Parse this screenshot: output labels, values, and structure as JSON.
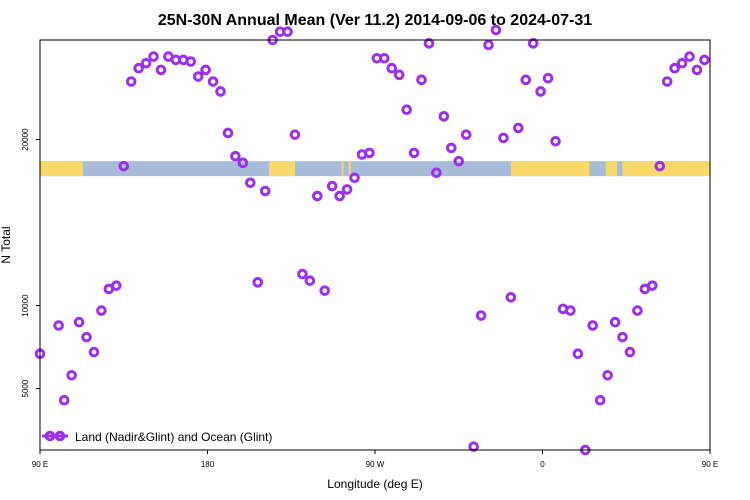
{
  "chart_data": {
    "type": "scatter",
    "title": "25N-30N Annual Mean (Ver 11.2)   2014-09-06 to 2024-07-31",
    "xlabel": "Longitude (deg E)",
    "ylabel": "N Total",
    "x_unit_note": "unwrapped longitude: starts at 90 E, runs east through 180 and back around to 180 E",
    "xlim": [
      90,
      450
    ],
    "ylim": [
      1300,
      26000
    ],
    "x_ticks": [
      {
        "value": 90,
        "label": "90 E"
      },
      {
        "value": 180,
        "label": "180"
      },
      {
        "value": 270,
        "label": "90 W"
      },
      {
        "value": 360,
        "label": "0"
      },
      {
        "value": 450,
        "label": "90 E"
      },
      {
        "value": 540,
        "label": "180"
      }
    ],
    "y_ticks": [
      {
        "value": 5000,
        "label": "5000"
      },
      {
        "value": 10000,
        "label": "10000"
      },
      {
        "value": 20000,
        "label": "20000"
      }
    ],
    "grid": false,
    "legend_position": "bottom-left",
    "colors": {
      "marker": "#9b30f0",
      "land": "#f8d96a",
      "ocean": "#a8bcd9"
    },
    "mask_strip_y_range": [
      17800,
      18700
    ],
    "land_segments": [
      [
        90,
        113
      ],
      [
        213,
        227
      ],
      [
        252,
        253
      ],
      [
        256,
        257
      ],
      [
        343,
        360
      ],
      [
        360,
        385
      ],
      [
        394,
        400
      ],
      [
        403,
        461
      ]
    ],
    "series": [
      {
        "name": "Land (Nadir&Glint) and Ocean (Glint)",
        "points": [
          [
            90,
            7100
          ],
          [
            100,
            8800
          ],
          [
            103,
            4300
          ],
          [
            107,
            5800
          ],
          [
            111,
            9000
          ],
          [
            115,
            8100
          ],
          [
            119,
            7200
          ],
          [
            123,
            9700
          ],
          [
            127,
            11000
          ],
          [
            131,
            11200
          ],
          [
            135,
            18400
          ],
          [
            139,
            23500
          ],
          [
            143,
            24300
          ],
          [
            147,
            24600
          ],
          [
            151,
            25000
          ],
          [
            155,
            24200
          ],
          [
            159,
            25000
          ],
          [
            163,
            24800
          ],
          [
            167,
            24800
          ],
          [
            171,
            24700
          ],
          [
            175,
            23800
          ],
          [
            179,
            24200
          ],
          [
            183,
            23500
          ],
          [
            187,
            22900
          ],
          [
            191,
            20400
          ],
          [
            195,
            19000
          ],
          [
            199,
            18600
          ],
          [
            203,
            17400
          ],
          [
            207,
            11400
          ],
          [
            211,
            16900
          ],
          [
            215,
            26000
          ],
          [
            219,
            26500
          ],
          [
            223,
            26500
          ],
          [
            227,
            20300
          ],
          [
            231,
            11900
          ],
          [
            235,
            11500
          ],
          [
            239,
            16600
          ],
          [
            243,
            10900
          ],
          [
            247,
            17200
          ],
          [
            251,
            16600
          ],
          [
            255,
            17000
          ],
          [
            259,
            17700
          ],
          [
            263,
            19100
          ],
          [
            267,
            19200
          ],
          [
            271,
            24900
          ],
          [
            275,
            24900
          ],
          [
            279,
            24300
          ],
          [
            283,
            23900
          ],
          [
            287,
            21800
          ],
          [
            291,
            19200
          ],
          [
            295,
            23600
          ],
          [
            299,
            25800
          ],
          [
            303,
            18000
          ],
          [
            307,
            21400
          ],
          [
            311,
            19500
          ],
          [
            315,
            18700
          ],
          [
            319,
            20300
          ],
          [
            323,
            1500
          ],
          [
            327,
            9400
          ],
          [
            331,
            25700
          ],
          [
            335,
            26600
          ],
          [
            339,
            20100
          ],
          [
            343,
            10500
          ],
          [
            347,
            20700
          ],
          [
            351,
            23600
          ],
          [
            355,
            25800
          ],
          [
            359,
            22900
          ],
          [
            363,
            23700
          ],
          [
            367,
            19900
          ],
          [
            371,
            9800
          ],
          [
            375,
            9700
          ],
          [
            379,
            7100
          ],
          [
            383,
            1300
          ],
          [
            387,
            8800
          ],
          [
            391,
            4300
          ],
          [
            395,
            5800
          ],
          [
            399,
            9000
          ],
          [
            403,
            8100
          ],
          [
            407,
            7200
          ],
          [
            411,
            9700
          ],
          [
            415,
            11000
          ],
          [
            419,
            11200
          ],
          [
            423,
            18400
          ],
          [
            427,
            23500
          ],
          [
            431,
            24300
          ],
          [
            435,
            24600
          ],
          [
            439,
            25000
          ],
          [
            443,
            24200
          ],
          [
            447,
            24800
          ]
        ]
      }
    ]
  },
  "legend": {
    "entry_label": "Land (Nadir&Glint) and Ocean (Glint)"
  }
}
